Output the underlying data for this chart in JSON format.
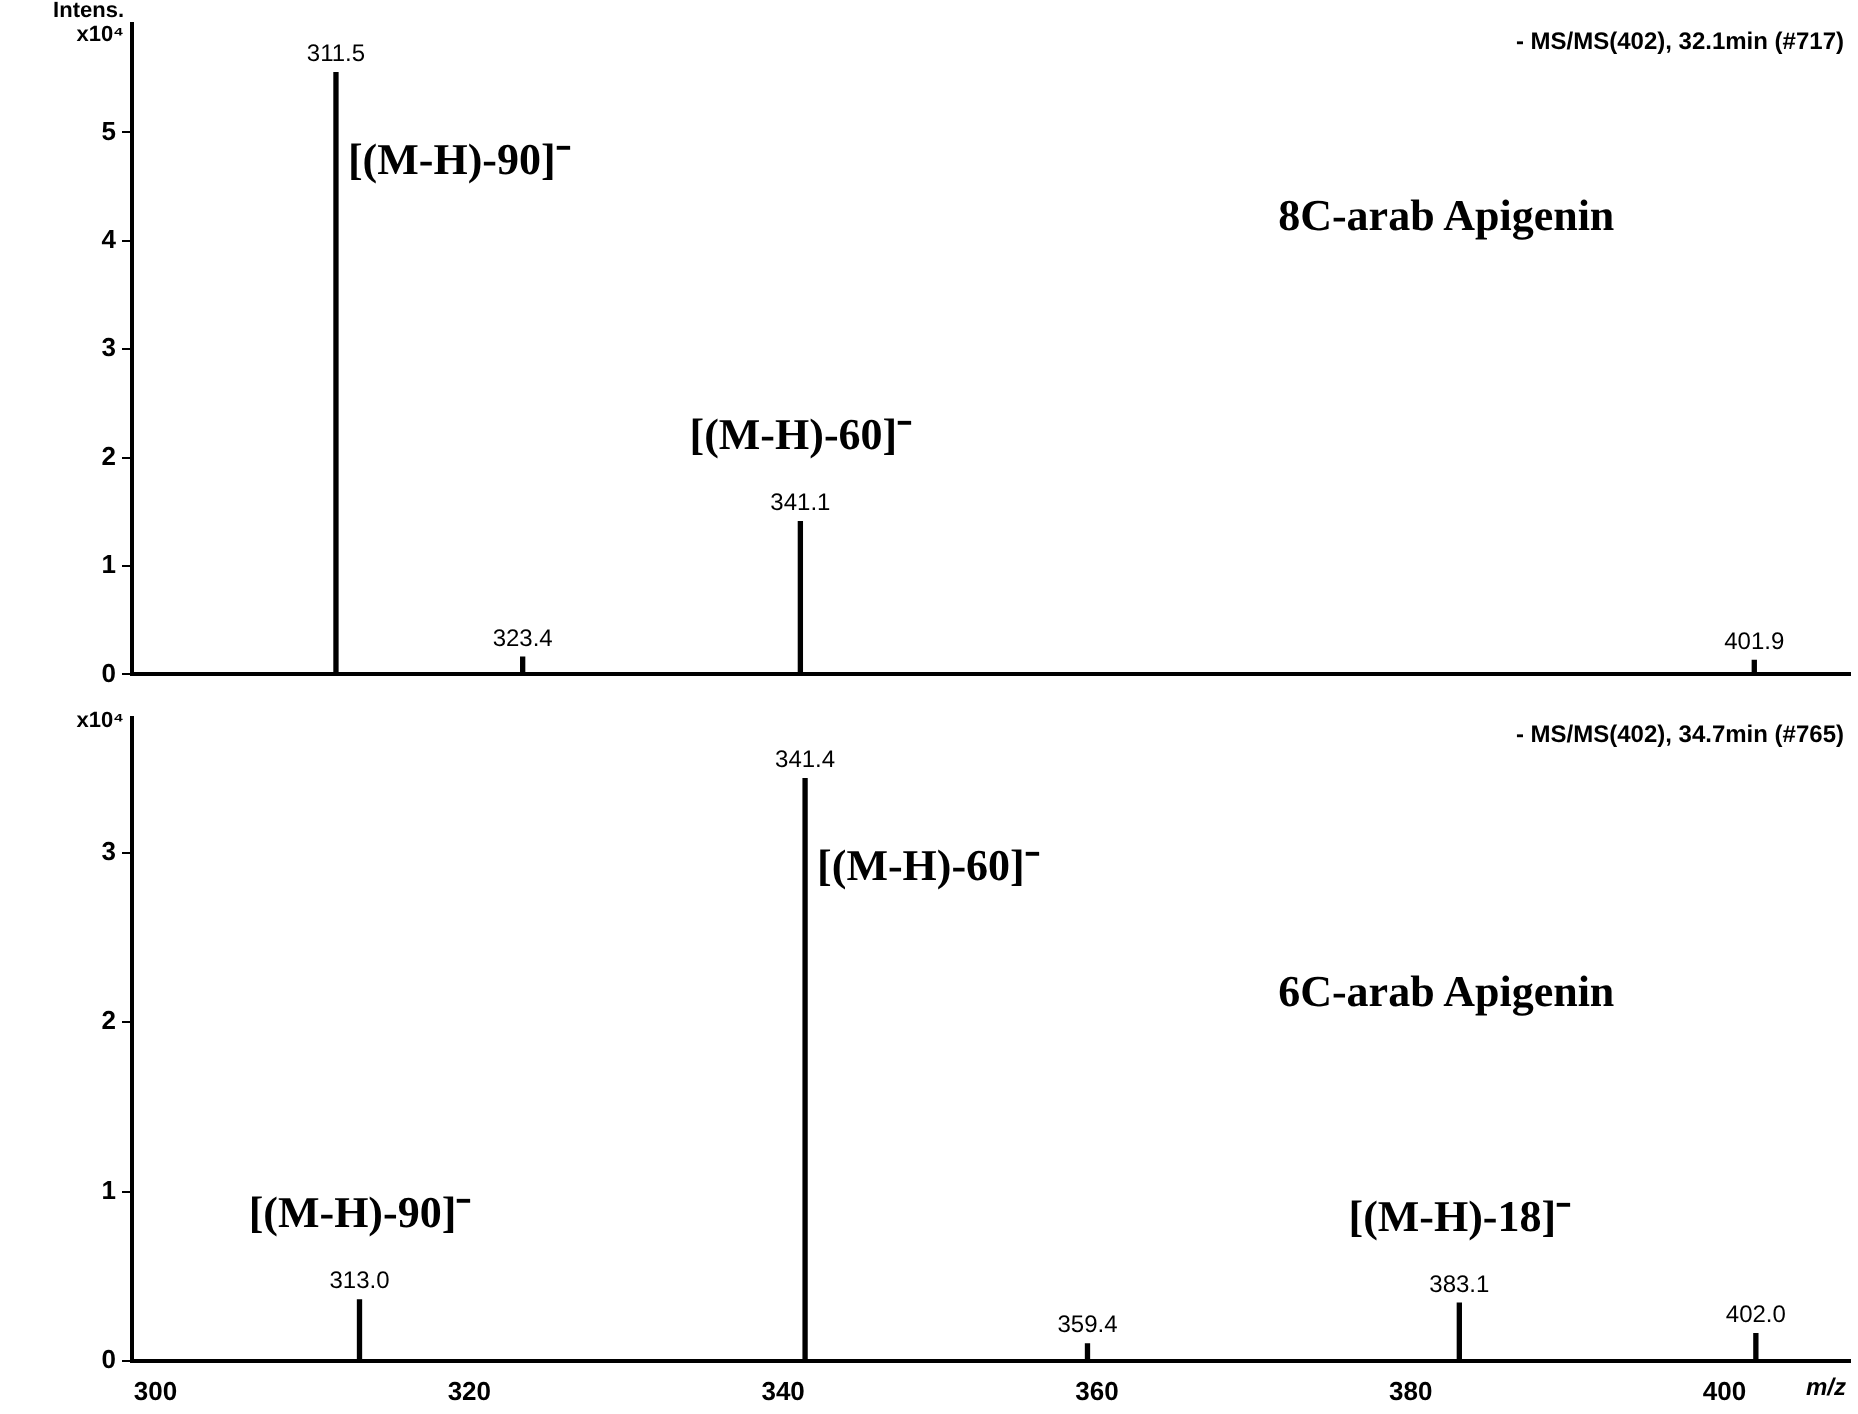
{
  "chart_data": [
    {
      "type": "bar",
      "title": "8C-arab Apigenin",
      "subtitle": "- MS/MS(402), 32.1min (#717)",
      "ylabel": "Intens.",
      "color": "#000000",
      "x": [
        311.5,
        323.4,
        341.1,
        401.9
      ],
      "values": [
        5.55,
        0.16,
        1.41,
        0.13
      ],
      "xlim": [
        298.5,
        408
      ],
      "xticks": [
        300,
        320,
        340,
        360,
        380,
        400
      ],
      "ylim": [
        0,
        6
      ],
      "yticks": [
        0,
        1,
        2,
        3,
        4,
        5
      ],
      "tick_labels": "y",
      "grid": false,
      "legend": false,
      "annotations": [
        "x10⁴",
        {
          "text": "311.5",
          "x": 311.5,
          "y": 5.55
        },
        {
          "text": "[(M-H)-90]⁻",
          "x": 311.5,
          "y": 5.55
        },
        {
          "text": "323.4",
          "x": 323.4,
          "y": 0.16
        },
        {
          "text": "341.1",
          "x": 341.1,
          "y": 1.41
        },
        {
          "text": "[(M-H)-60]⁻",
          "x": 341.1,
          "y": 1.41
        },
        {
          "text": "401.9",
          "x": 401.9,
          "y": 0.13
        }
      ]
    },
    {
      "type": "bar",
      "title": "6C-arab Apigenin",
      "subtitle": "- MS/MS(402), 34.7min (#765)",
      "xlabel": "m/z",
      "color": "#000000",
      "x": [
        313.0,
        341.4,
        359.4,
        383.1,
        402.0
      ],
      "values": [
        0.36,
        3.44,
        0.1,
        0.34,
        0.16
      ],
      "xlim": [
        298.5,
        408
      ],
      "xticks": [
        300,
        320,
        340,
        360,
        380,
        400
      ],
      "ylim": [
        0,
        3.8
      ],
      "yticks": [
        0,
        1,
        2,
        3
      ],
      "grid": false,
      "legend": false,
      "annotations": [
        "x10⁴",
        {
          "text": "313.0",
          "x": 313.0,
          "y": 0.36
        },
        {
          "text": "[(M-H)-90]⁻",
          "x": 313.0,
          "y": 0.36
        },
        {
          "text": "341.4",
          "x": 341.4,
          "y": 3.44
        },
        {
          "text": "[(M-H)-60]⁻",
          "x": 341.4,
          "y": 3.44
        },
        {
          "text": "359.4",
          "x": 359.4,
          "y": 0.1
        },
        {
          "text": "383.1",
          "x": 383.1,
          "y": 0.34
        },
        {
          "text": "[(M-H)-18]⁻",
          "x": 383.1,
          "y": 0.34
        },
        {
          "text": "402.0",
          "x": 402.0,
          "y": 0.16
        }
      ]
    }
  ]
}
